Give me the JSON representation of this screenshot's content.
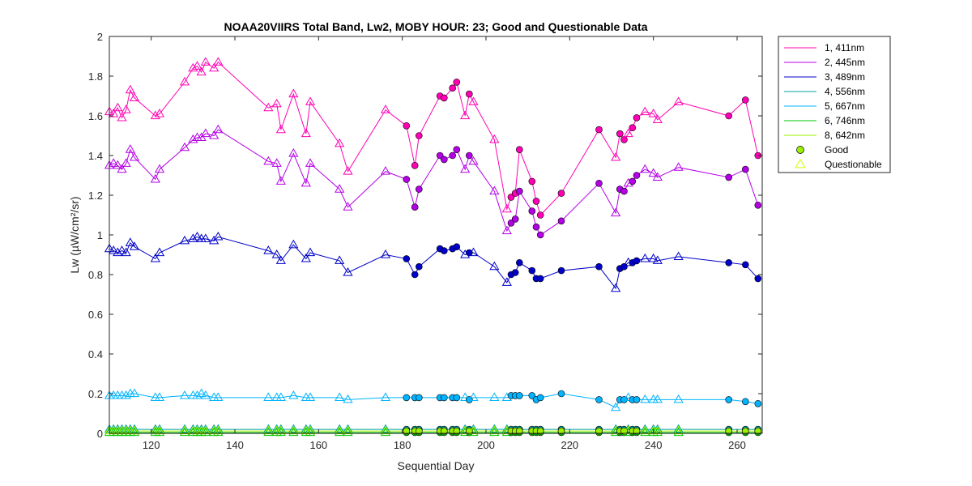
{
  "chart_data": {
    "type": "line",
    "title": "NOAA20VIIRS Total Band,  Lw2, MOBY HOUR: 23;  Good and Questionable Data",
    "xlabel": "Sequential Day",
    "ylabel": "Lw (µW/cm²/sr)",
    "xlim": [
      110,
      266
    ],
    "ylim": [
      0,
      2
    ],
    "xticks": [
      120,
      140,
      160,
      180,
      200,
      220,
      240,
      260
    ],
    "xtick_labels": [
      "120",
      "140",
      "160",
      "180",
      "200",
      "220",
      "240",
      "260"
    ],
    "yticks": [
      0,
      0.2,
      0.4,
      0.6,
      0.8,
      1,
      1.2,
      1.4,
      1.6,
      1.8,
      2
    ],
    "ytick_labels": [
      "0",
      "0.2",
      "0.4",
      "0.6",
      "0.8",
      "1",
      "1.2",
      "1.4",
      "1.6",
      "1.8",
      "2"
    ],
    "grid": false,
    "legend_position": "outside-top-right",
    "x": [
      110,
      111,
      112,
      113,
      114,
      115,
      116,
      121,
      122,
      128,
      130,
      131,
      132,
      133,
      135,
      136,
      148,
      150,
      151,
      154,
      157,
      158,
      165,
      167,
      176,
      181,
      183,
      184,
      189,
      190,
      192,
      193,
      195,
      196,
      197,
      202,
      205,
      206,
      207,
      208,
      211,
      212,
      213,
      218,
      227,
      231,
      232,
      233,
      234,
      235,
      236,
      238,
      240,
      241,
      246,
      258,
      262,
      265
    ],
    "quality": [
      "Q",
      "Q",
      "Q",
      "Q",
      "Q",
      "Q",
      "Q",
      "Q",
      "Q",
      "Q",
      "Q",
      "Q",
      "Q",
      "Q",
      "Q",
      "Q",
      "Q",
      "Q",
      "Q",
      "Q",
      "Q",
      "Q",
      "Q",
      "Q",
      "Q",
      "G",
      "G",
      "G",
      "G",
      "G",
      "G",
      "G",
      "Q",
      "G",
      "Q",
      "Q",
      "Q",
      "G",
      "G",
      "G",
      "G",
      "G",
      "G",
      "G",
      "G",
      "Q",
      "G",
      "G",
      "Q",
      "G",
      "G",
      "Q",
      "Q",
      "Q",
      "Q",
      "G",
      "G",
      "G"
    ],
    "series": [
      {
        "name": "1, 411nm",
        "color": "#ff00b4",
        "values": [
          1.62,
          1.61,
          1.64,
          1.59,
          1.63,
          1.73,
          1.69,
          1.6,
          1.61,
          1.77,
          1.84,
          1.85,
          1.82,
          1.87,
          1.84,
          1.87,
          1.64,
          1.66,
          1.53,
          1.71,
          1.51,
          1.67,
          1.46,
          1.32,
          1.63,
          1.55,
          1.35,
          1.5,
          1.7,
          1.69,
          1.74,
          1.77,
          1.6,
          1.71,
          1.67,
          1.48,
          1.13,
          1.19,
          1.21,
          1.43,
          1.27,
          1.17,
          1.1,
          1.21,
          1.53,
          1.39,
          1.51,
          1.48,
          1.51,
          1.54,
          1.59,
          1.62,
          1.61,
          1.58,
          1.67,
          1.6,
          1.68,
          1.4
        ]
      },
      {
        "name": "2, 445nm",
        "color": "#b400e6",
        "values": [
          1.35,
          1.36,
          1.35,
          1.33,
          1.36,
          1.43,
          1.39,
          1.28,
          1.33,
          1.44,
          1.48,
          1.49,
          1.49,
          1.51,
          1.5,
          1.53,
          1.37,
          1.36,
          1.27,
          1.41,
          1.26,
          1.36,
          1.23,
          1.14,
          1.32,
          1.28,
          1.14,
          1.23,
          1.4,
          1.38,
          1.4,
          1.43,
          1.33,
          1.4,
          1.37,
          1.22,
          1.02,
          1.06,
          1.08,
          1.22,
          1.12,
          1.04,
          1.0,
          1.07,
          1.26,
          1.11,
          1.23,
          1.22,
          1.26,
          1.27,
          1.3,
          1.33,
          1.31,
          1.29,
          1.34,
          1.29,
          1.33,
          1.15
        ]
      },
      {
        "name": "3, 489nm",
        "color": "#0000c8",
        "values": [
          0.93,
          0.92,
          0.91,
          0.92,
          0.91,
          0.96,
          0.94,
          0.88,
          0.91,
          0.97,
          0.98,
          0.99,
          0.98,
          0.98,
          0.97,
          0.99,
          0.92,
          0.9,
          0.87,
          0.95,
          0.88,
          0.91,
          0.87,
          0.81,
          0.9,
          0.88,
          0.8,
          0.84,
          0.93,
          0.92,
          0.93,
          0.94,
          0.9,
          0.91,
          0.91,
          0.84,
          0.76,
          0.8,
          0.81,
          0.86,
          0.82,
          0.78,
          0.78,
          0.82,
          0.84,
          0.73,
          0.83,
          0.84,
          0.86,
          0.86,
          0.87,
          0.88,
          0.88,
          0.87,
          0.89,
          0.86,
          0.85,
          0.78
        ]
      },
      {
        "name": "4, 556nm",
        "color": "#00a0a0",
        "values": [
          0.02,
          0.02,
          0.02,
          0.02,
          0.02,
          0.02,
          0.02,
          0.02,
          0.02,
          0.02,
          0.02,
          0.02,
          0.02,
          0.02,
          0.02,
          0.02,
          0.02,
          0.02,
          0.02,
          0.02,
          0.02,
          0.02,
          0.02,
          0.02,
          0.02,
          0.02,
          0.02,
          0.02,
          0.02,
          0.02,
          0.02,
          0.02,
          0.02,
          0.02,
          0.02,
          0.02,
          0.02,
          0.02,
          0.02,
          0.02,
          0.02,
          0.02,
          0.02,
          0.02,
          0.02,
          0.02,
          0.02,
          0.02,
          0.02,
          0.02,
          0.02,
          0.02,
          0.02,
          0.02,
          0.02,
          0.02,
          0.02,
          0.02
        ]
      },
      {
        "name": "5, 667nm",
        "color": "#00b4ff",
        "values": [
          0.19,
          0.19,
          0.19,
          0.19,
          0.19,
          0.2,
          0.2,
          0.18,
          0.18,
          0.19,
          0.19,
          0.19,
          0.2,
          0.19,
          0.18,
          0.18,
          0.18,
          0.18,
          0.18,
          0.19,
          0.18,
          0.18,
          0.18,
          0.17,
          0.18,
          0.18,
          0.18,
          0.18,
          0.18,
          0.18,
          0.18,
          0.18,
          0.18,
          0.17,
          0.18,
          0.18,
          0.18,
          0.19,
          0.19,
          0.19,
          0.19,
          0.17,
          0.18,
          0.2,
          0.17,
          0.13,
          0.17,
          0.17,
          0.18,
          0.17,
          0.17,
          0.17,
          0.17,
          0.17,
          0.17,
          0.17,
          0.16,
          0.15
        ]
      },
      {
        "name": "6, 746nm",
        "color": "#00c800",
        "values": [
          0.004,
          0.004,
          0.004,
          0.004,
          0.004,
          0.004,
          0.004,
          0.004,
          0.004,
          0.004,
          0.004,
          0.004,
          0.004,
          0.004,
          0.004,
          0.004,
          0.004,
          0.004,
          0.004,
          0.004,
          0.004,
          0.004,
          0.004,
          0.004,
          0.004,
          0.004,
          0.004,
          0.004,
          0.004,
          0.004,
          0.004,
          0.004,
          0.004,
          0.004,
          0.004,
          0.004,
          0.004,
          0.004,
          0.004,
          0.004,
          0.004,
          0.004,
          0.004,
          0.004,
          0.004,
          0.004,
          0.004,
          0.004,
          0.004,
          0.004,
          0.004,
          0.004,
          0.004,
          0.004,
          0.004,
          0.004,
          0.004,
          0.004
        ]
      },
      {
        "name": "8, 642nm",
        "color": "#9bf000",
        "values": [
          0.012,
          0.012,
          0.012,
          0.012,
          0.012,
          0.012,
          0.012,
          0.012,
          0.012,
          0.012,
          0.012,
          0.012,
          0.012,
          0.012,
          0.012,
          0.012,
          0.012,
          0.012,
          0.012,
          0.012,
          0.012,
          0.012,
          0.012,
          0.012,
          0.012,
          0.012,
          0.012,
          0.012,
          0.012,
          0.012,
          0.012,
          0.012,
          0.012,
          0.012,
          0.012,
          0.012,
          0.012,
          0.012,
          0.012,
          0.012,
          0.012,
          0.012,
          0.012,
          0.012,
          0.012,
          0.012,
          0.012,
          0.012,
          0.012,
          0.012,
          0.012,
          0.012,
          0.012,
          0.012,
          0.012,
          0.012,
          0.012,
          0.012
        ]
      }
    ],
    "markers": [
      {
        "label": "Good",
        "symbol": "circle",
        "color": "#9bf000"
      },
      {
        "label": "Questionable",
        "symbol": "triangle",
        "color": "#ccff00"
      }
    ]
  }
}
